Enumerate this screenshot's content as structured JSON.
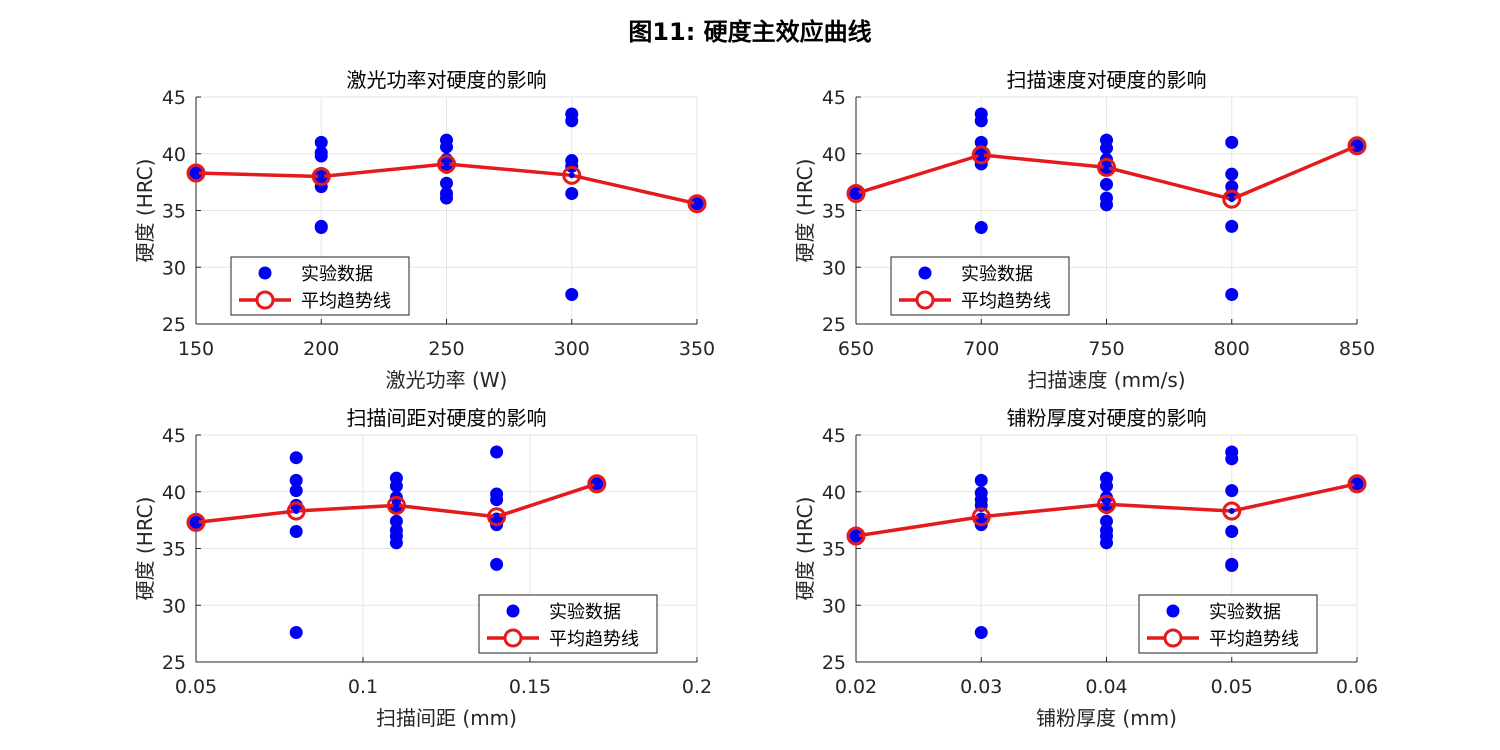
{
  "figure": {
    "title": "图11: 硬度主效应曲线"
  },
  "colors": {
    "scatter": "#0000f5",
    "trend": "#e41a1c",
    "grid": "#e6e6e6",
    "axis": "#262626"
  },
  "chart_data": [
    {
      "type": "scatter",
      "title": "激光功率对硬度的影响",
      "xlabel": "激光功率 (W)",
      "ylabel": "硬度 (HRC)",
      "xlim": [
        150,
        350
      ],
      "ylim": [
        25,
        45
      ],
      "xticks": [
        150,
        200,
        250,
        300,
        350
      ],
      "xtick_labels": [
        "150",
        "200",
        "250",
        "300",
        "350"
      ],
      "yticks": [
        25,
        30,
        35,
        40,
        45
      ],
      "legend": {
        "position": "bottom-left",
        "entries": [
          "实验数据",
          "平均趋势线"
        ]
      },
      "series": [
        {
          "name": "实验数据",
          "kind": "scatter",
          "x": [
            150,
            200,
            200,
            200,
            200,
            200,
            200,
            200,
            250,
            250,
            250,
            250,
            250,
            250,
            250,
            300,
            300,
            300,
            300,
            300,
            300,
            350
          ],
          "y": [
            38.3,
            41.0,
            40.1,
            39.8,
            38.0,
            37.1,
            33.6,
            33.5,
            41.2,
            40.6,
            39.5,
            38.8,
            37.4,
            36.5,
            36.1,
            43.5,
            42.9,
            39.4,
            38.9,
            36.5,
            27.6,
            35.6
          ]
        },
        {
          "name": "平均趋势线",
          "kind": "line",
          "x": [
            150,
            200,
            250,
            300,
            350
          ],
          "y": [
            38.3,
            38.0,
            39.1,
            38.1,
            35.6
          ]
        }
      ]
    },
    {
      "type": "scatter",
      "title": "扫描速度对硬度的影响",
      "xlabel": "扫描速度 (mm/s)",
      "ylabel": "硬度 (HRC)",
      "xlim": [
        650,
        850
      ],
      "ylim": [
        25,
        45
      ],
      "xticks": [
        650,
        700,
        750,
        800,
        850
      ],
      "xtick_labels": [
        "650",
        "700",
        "750",
        "800",
        "850"
      ],
      "yticks": [
        25,
        30,
        35,
        40,
        45
      ],
      "legend": {
        "position": "bottom-left",
        "entries": [
          "实验数据",
          "平均趋势线"
        ]
      },
      "series": [
        {
          "name": "实验数据",
          "kind": "scatter",
          "x": [
            650,
            700,
            700,
            700,
            700,
            700,
            700,
            750,
            750,
            750,
            750,
            750,
            750,
            750,
            800,
            800,
            800,
            800,
            800,
            800,
            850
          ],
          "y": [
            36.5,
            43.5,
            42.9,
            41.0,
            39.9,
            39.1,
            33.5,
            41.2,
            40.5,
            39.5,
            38.7,
            37.3,
            36.1,
            35.5,
            41.0,
            38.2,
            37.1,
            36.4,
            33.6,
            27.6,
            40.7
          ]
        },
        {
          "name": "平均趋势线",
          "kind": "line",
          "x": [
            650,
            700,
            750,
            800,
            850
          ],
          "y": [
            36.5,
            39.9,
            38.8,
            36.0,
            40.7
          ]
        }
      ]
    },
    {
      "type": "scatter",
      "title": "扫描间距对硬度的影响",
      "xlabel": "扫描间距 (mm)",
      "ylabel": "硬度 (HRC)",
      "xlim": [
        0.05,
        0.2
      ],
      "ylim": [
        25,
        45
      ],
      "xticks": [
        0.05,
        0.1,
        0.15,
        0.2
      ],
      "xtick_labels": [
        "0.05",
        "0.1",
        "0.15",
        "0.2"
      ],
      "yticks": [
        25,
        30,
        35,
        40,
        45
      ],
      "legend": {
        "position": "bottom-right",
        "entries": [
          "实验数据",
          "平均趋势线"
        ]
      },
      "series": [
        {
          "name": "实验数据",
          "kind": "scatter",
          "x": [
            0.05,
            0.08,
            0.08,
            0.08,
            0.08,
            0.08,
            0.08,
            0.11,
            0.11,
            0.11,
            0.11,
            0.11,
            0.11,
            0.11,
            0.11,
            0.14,
            0.14,
            0.14,
            0.14,
            0.14,
            0.14,
            0.17
          ],
          "y": [
            37.3,
            43.0,
            41.0,
            40.1,
            38.8,
            36.5,
            27.6,
            41.2,
            40.5,
            39.5,
            38.6,
            37.4,
            36.6,
            36.1,
            35.5,
            43.5,
            39.8,
            39.3,
            37.6,
            37.1,
            33.6,
            40.7
          ]
        },
        {
          "name": "平均趋势线",
          "kind": "line",
          "x": [
            0.05,
            0.08,
            0.11,
            0.14,
            0.17
          ],
          "y": [
            37.3,
            38.3,
            38.8,
            37.8,
            40.7
          ]
        }
      ]
    },
    {
      "type": "scatter",
      "title": "铺粉厚度对硬度的影响",
      "xlabel": "铺粉厚度 (mm)",
      "ylabel": "硬度 (HRC)",
      "xlim": [
        0.02,
        0.06
      ],
      "ylim": [
        25,
        45
      ],
      "xticks": [
        0.02,
        0.03,
        0.04,
        0.05,
        0.06
      ],
      "xtick_labels": [
        "0.02",
        "0.03",
        "0.04",
        "0.05",
        "0.06"
      ],
      "yticks": [
        25,
        30,
        35,
        40,
        45
      ],
      "legend": {
        "position": "bottom-right",
        "entries": [
          "实验数据",
          "平均趋势线"
        ]
      },
      "series": [
        {
          "name": "实验数据",
          "kind": "scatter",
          "x": [
            0.02,
            0.03,
            0.03,
            0.03,
            0.03,
            0.03,
            0.03,
            0.03,
            0.04,
            0.04,
            0.04,
            0.04,
            0.04,
            0.04,
            0.04,
            0.04,
            0.05,
            0.05,
            0.05,
            0.05,
            0.05,
            0.05,
            0.06
          ],
          "y": [
            36.1,
            41.0,
            39.9,
            39.3,
            38.8,
            37.6,
            37.1,
            27.6,
            41.2,
            40.5,
            39.5,
            38.6,
            37.4,
            36.6,
            36.1,
            35.5,
            43.5,
            42.9,
            40.1,
            36.5,
            33.6,
            33.5,
            40.7
          ]
        },
        {
          "name": "平均趋势线",
          "kind": "line",
          "x": [
            0.02,
            0.03,
            0.04,
            0.05,
            0.06
          ],
          "y": [
            36.1,
            37.8,
            38.9,
            38.3,
            40.7
          ]
        }
      ]
    }
  ]
}
